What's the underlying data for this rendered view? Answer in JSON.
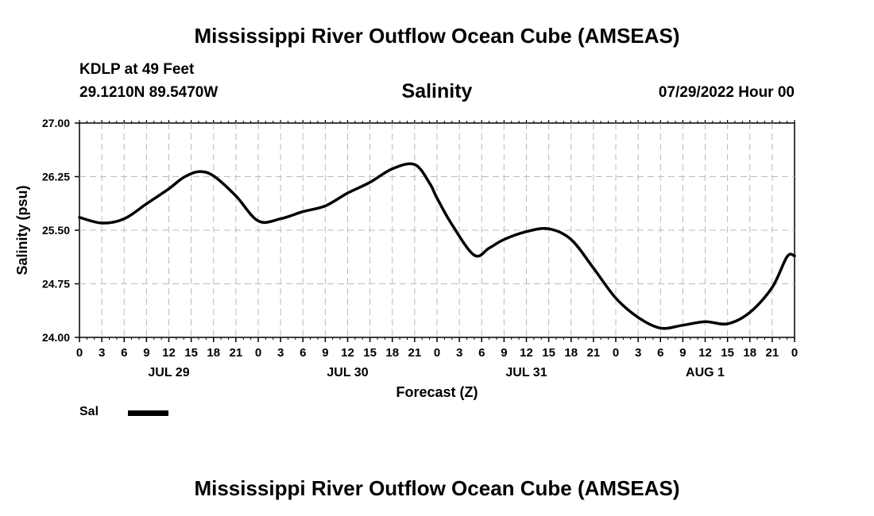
{
  "header": {
    "title": "Mississippi River Outflow Ocean Cube (AMSEAS)",
    "station": "KDLP at 49 Feet",
    "coords": "29.1210N  89.5470W",
    "parameter": "Salinity",
    "datetime": "07/29/2022 Hour 00"
  },
  "footer": {
    "title": "Mississippi River Outflow Ocean Cube (AMSEAS)"
  },
  "chart_data": {
    "type": "line",
    "title": "Salinity",
    "xlabel": "Forecast (Z)",
    "ylabel": "Salinity (psu)",
    "ylim": [
      24.0,
      27.0
    ],
    "yticks": [
      "24.00",
      "24.75",
      "25.50",
      "26.25",
      "27.00"
    ],
    "x_range_hours": [
      0,
      96
    ],
    "x_tick_labels": [
      "0",
      "3",
      "6",
      "9",
      "12",
      "15",
      "18",
      "21",
      "0",
      "3",
      "6",
      "9",
      "12",
      "15",
      "18",
      "21",
      "0",
      "3",
      "6",
      "9",
      "12",
      "15",
      "18",
      "21",
      "0",
      "3",
      "6",
      "9",
      "12",
      "15",
      "18",
      "21",
      "0"
    ],
    "day_labels": [
      {
        "hour": 12,
        "label": "JUL 29"
      },
      {
        "hour": 36,
        "label": "JUL 30"
      },
      {
        "hour": 60,
        "label": "JUL 31"
      },
      {
        "hour": 84,
        "label": "AUG 1"
      }
    ],
    "grid": true,
    "series": [
      {
        "name": "Sal",
        "color": "#000000",
        "x": [
          0,
          3,
          6,
          9,
          12,
          14,
          16,
          18,
          21,
          24,
          27,
          30,
          33,
          36,
          39,
          42,
          45,
          47,
          48,
          50,
          53,
          55,
          57,
          60,
          63,
          66,
          69,
          72,
          75,
          78,
          81,
          84,
          87,
          90,
          93,
          95,
          96
        ],
        "values": [
          25.68,
          25.6,
          25.66,
          25.87,
          26.08,
          26.24,
          26.32,
          26.26,
          25.98,
          25.63,
          25.66,
          25.76,
          25.84,
          26.02,
          26.17,
          26.36,
          26.42,
          26.16,
          25.95,
          25.58,
          25.15,
          25.25,
          25.37,
          25.48,
          25.52,
          25.37,
          24.97,
          24.55,
          24.28,
          24.13,
          24.17,
          24.22,
          24.19,
          24.35,
          24.7,
          25.13,
          25.14
        ]
      }
    ],
    "legend": "bottom-left"
  }
}
